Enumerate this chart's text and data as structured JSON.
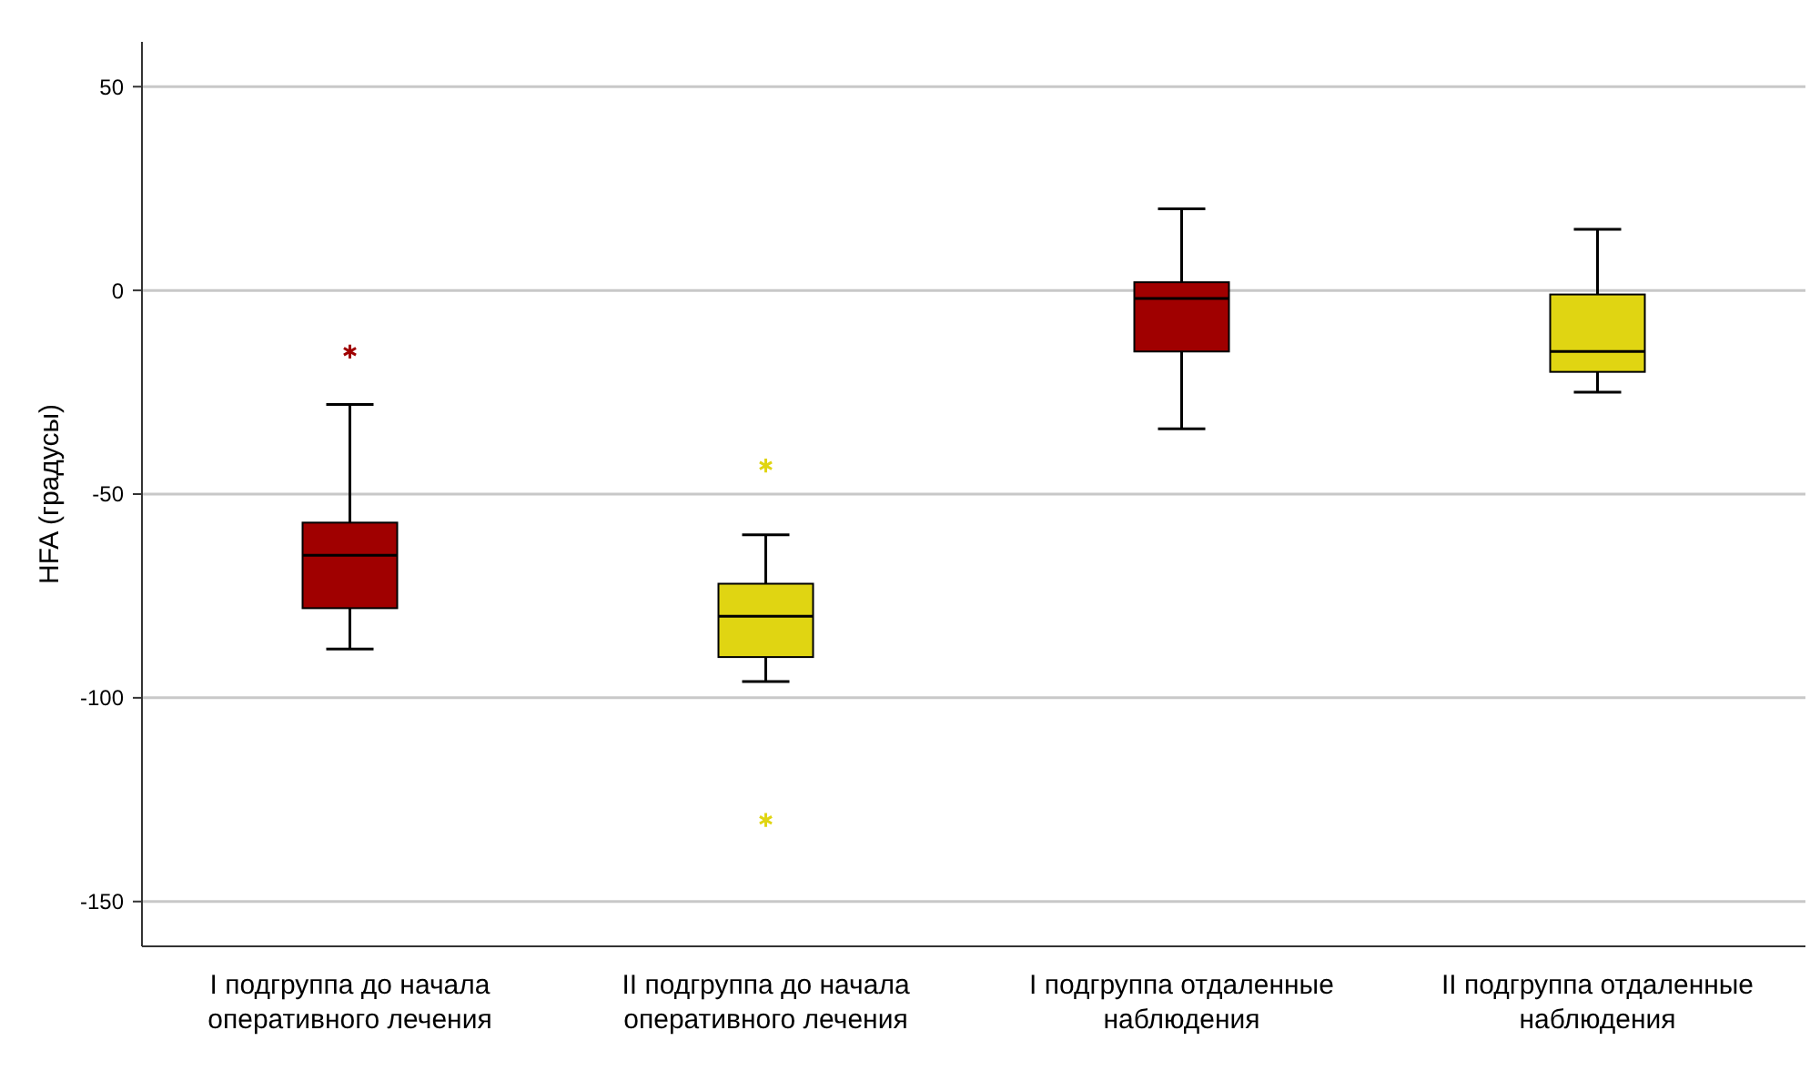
{
  "chart_data": {
    "type": "box",
    "ylabel": "HFA (градусы)",
    "categories": [
      "I подгруппа до начала оперативного лечения",
      "II подгруппа до начала оперативного лечения",
      "I подгруппа отдаленные наблюдения",
      "II подгруппа отдаленные наблюдения"
    ],
    "colors": [
      "#a00000",
      "#e0d512",
      "#a00000",
      "#e0d512"
    ],
    "boxes": [
      {
        "low": -88,
        "q1": -78,
        "median": -65,
        "q3": -57,
        "high": -28,
        "outliers": [
          -15
        ]
      },
      {
        "low": -96,
        "q1": -90,
        "median": -80,
        "q3": -72,
        "high": -60,
        "outliers": [
          -43,
          -130
        ]
      },
      {
        "low": -34,
        "q1": -15,
        "median": -2,
        "q3": 2,
        "high": 20
      },
      {
        "low": -25,
        "q1": -20,
        "median": -15,
        "q3": -1,
        "high": 15
      }
    ],
    "ylim": [
      -161,
      61
    ],
    "yticks": [
      -150,
      -100,
      -50,
      0,
      50
    ],
    "grid": "y",
    "marker": "star"
  }
}
